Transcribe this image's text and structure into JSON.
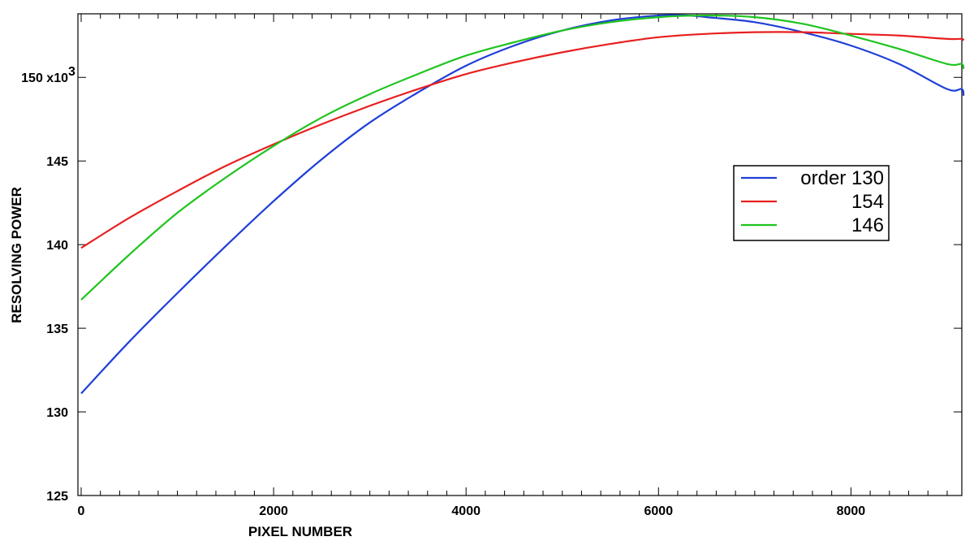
{
  "chart_data": {
    "type": "line",
    "title": "",
    "xlabel": "PIXEL NUMBER",
    "ylabel": "RESOLVING POWER",
    "xlim": [
      0,
      9200
    ],
    "ylim": [
      125,
      153.8
    ],
    "x_ticks": [
      {
        "value": 0,
        "label": "0"
      },
      {
        "value": 2000,
        "label": "2000"
      },
      {
        "value": 4000,
        "label": "4000"
      },
      {
        "value": 6000,
        "label": "6000"
      },
      {
        "value": 8000,
        "label": "8000"
      }
    ],
    "y_ticks": [
      {
        "value": 125,
        "label": "125"
      },
      {
        "value": 130,
        "label": "130"
      },
      {
        "value": 135,
        "label": "135"
      },
      {
        "value": 140,
        "label": "140"
      },
      {
        "value": 145,
        "label": "145"
      },
      {
        "value": 150,
        "label": "150 x10",
        "sup": "3"
      }
    ],
    "grid": false,
    "legend_position": "right",
    "series": [
      {
        "name": "order 130",
        "color": "#1f3fd6",
        "x": [
          0,
          500,
          1000,
          1500,
          2000,
          2500,
          3000,
          3500,
          4000,
          4500,
          5000,
          5500,
          6000,
          6300,
          6500,
          7000,
          7500,
          8000,
          8500,
          9000,
          9150,
          9170
        ],
        "y": [
          131.1,
          134.2,
          137.1,
          139.9,
          142.6,
          145.1,
          147.3,
          149.1,
          150.7,
          151.9,
          152.8,
          153.4,
          153.7,
          153.7,
          153.6,
          153.3,
          152.7,
          151.9,
          150.8,
          149.3,
          149.3,
          148.9
        ]
      },
      {
        "name": "154",
        "color": "#e81f1f",
        "x": [
          0,
          500,
          1000,
          1500,
          2000,
          2500,
          3000,
          3500,
          4000,
          4500,
          5000,
          5500,
          6000,
          6500,
          7000,
          7500,
          8000,
          8500,
          9000,
          9150,
          9170
        ],
        "y": [
          139.8,
          141.6,
          143.2,
          144.7,
          146.0,
          147.2,
          148.3,
          149.3,
          150.2,
          150.9,
          151.5,
          152.0,
          152.4,
          152.6,
          152.7,
          152.7,
          152.6,
          152.5,
          152.3,
          152.3,
          152.2
        ]
      },
      {
        "name": "146",
        "color": "#1fc41f",
        "x": [
          0,
          500,
          1000,
          1500,
          2000,
          2500,
          3000,
          3500,
          4000,
          4500,
          5000,
          5500,
          6000,
          6500,
          7000,
          7500,
          8000,
          8500,
          9000,
          9150,
          9170
        ],
        "y": [
          136.7,
          139.4,
          141.9,
          144.0,
          145.9,
          147.6,
          149.0,
          150.2,
          151.3,
          152.1,
          152.8,
          153.3,
          153.6,
          153.7,
          153.6,
          153.2,
          152.5,
          151.7,
          150.8,
          150.8,
          150.5
        ]
      }
    ]
  }
}
